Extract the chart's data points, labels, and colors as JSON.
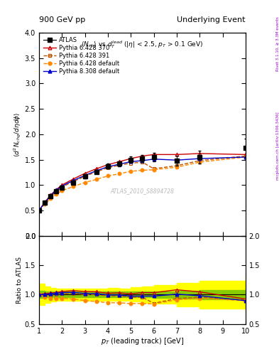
{
  "title_left": "900 GeV pp",
  "title_right": "Underlying Event",
  "watermark": "ATLAS_2010_S8894728",
  "right_label1": "mcplots.cern.ch [arXiv:1306.3436]",
  "right_label2": "Rivet 3.1.10, ≥ 3.3M events",
  "atlas_x": [
    1.0,
    1.25,
    1.5,
    1.75,
    2.0,
    2.5,
    3.0,
    3.5,
    4.0,
    4.5,
    5.0,
    5.5,
    6.0,
    7.0,
    8.0,
    10.0
  ],
  "atlas_y": [
    0.5,
    0.65,
    0.78,
    0.88,
    0.95,
    1.05,
    1.17,
    1.26,
    1.37,
    1.42,
    1.5,
    1.52,
    1.55,
    1.48,
    1.55,
    1.73
  ],
  "atlas_yerr": [
    0.03,
    0.03,
    0.03,
    0.03,
    0.03,
    0.03,
    0.04,
    0.04,
    0.05,
    0.05,
    0.06,
    0.07,
    0.08,
    0.1,
    0.12,
    0.18
  ],
  "py6428_370_x": [
    1.0,
    1.25,
    1.5,
    1.75,
    2.0,
    2.5,
    3.0,
    3.5,
    4.0,
    4.5,
    5.0,
    5.5,
    6.0,
    7.0,
    8.0,
    10.0
  ],
  "py6428_370_y": [
    0.5,
    0.66,
    0.8,
    0.91,
    1.0,
    1.12,
    1.23,
    1.32,
    1.4,
    1.46,
    1.52,
    1.57,
    1.6,
    1.6,
    1.62,
    1.6
  ],
  "py6428_391_x": [
    1.0,
    1.25,
    1.5,
    1.75,
    2.0,
    2.5,
    3.0,
    3.5,
    4.0,
    4.5,
    5.0,
    5.5,
    6.0,
    7.0,
    8.0,
    10.0
  ],
  "py6428_391_y": [
    0.5,
    0.64,
    0.77,
    0.88,
    0.96,
    1.07,
    1.17,
    1.26,
    1.34,
    1.39,
    1.43,
    1.45,
    1.32,
    1.38,
    1.48,
    1.57
  ],
  "py6428_def_x": [
    1.0,
    1.25,
    1.5,
    1.75,
    2.0,
    2.5,
    3.0,
    3.5,
    4.0,
    4.5,
    5.0,
    5.5,
    6.0,
    7.0,
    8.0,
    10.0
  ],
  "py6428_def_y": [
    0.5,
    0.62,
    0.73,
    0.82,
    0.89,
    0.97,
    1.05,
    1.11,
    1.18,
    1.22,
    1.27,
    1.29,
    1.3,
    1.35,
    1.45,
    1.55
  ],
  "py8308_def_x": [
    1.0,
    1.25,
    1.5,
    1.75,
    2.0,
    2.5,
    3.0,
    3.5,
    4.0,
    4.5,
    5.0,
    5.5,
    6.0,
    7.0,
    8.0,
    10.0
  ],
  "py8308_def_y": [
    0.5,
    0.65,
    0.79,
    0.9,
    0.98,
    1.09,
    1.19,
    1.28,
    1.36,
    1.41,
    1.46,
    1.48,
    1.51,
    1.49,
    1.52,
    1.55
  ],
  "color_py6428_370": "#cc0000",
  "color_py6428_391": "#bb5500",
  "color_py6428_def": "#ff8800",
  "color_py8308_def": "#0000cc",
  "ylim_main": [
    0.0,
    4.0
  ],
  "ylim_ratio": [
    0.5,
    2.0
  ],
  "xlim": [
    1.0,
    10.0
  ]
}
